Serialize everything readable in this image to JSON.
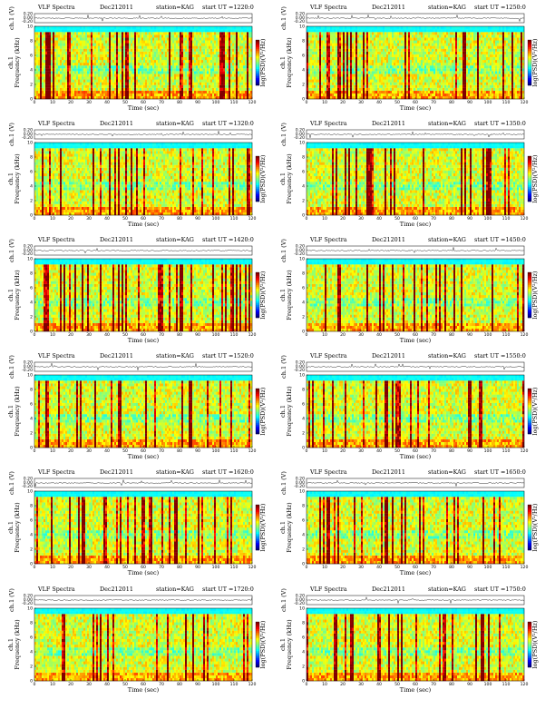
{
  "figure": {
    "header_left": "VLF Spectra",
    "date": "Dec212011",
    "station": "station=KAG",
    "start_prefix": "start UT =",
    "ch_label": "ch.1 (V)",
    "freq_label_left": "ch.1",
    "freq_label": "Frequency (kHz)",
    "time_label": "Time (sec)",
    "cbar_label": "log(PSD)(V²/Hz)"
  },
  "chart_data": [
    {
      "type": "heatmap",
      "title": "VLF Spectra Dec212011 station=KAG start UT =1220:0",
      "start_ut": "1220:0",
      "xlabel": "Time (sec)",
      "ylabel": "Frequency (kHz)",
      "xlim": [
        0,
        120
      ],
      "ylim": [
        0,
        10
      ],
      "x_ticks": [
        0,
        10,
        20,
        30,
        40,
        50,
        60,
        70,
        80,
        90,
        100,
        110,
        120
      ],
      "y_ticks": [
        0,
        2,
        4,
        6,
        8,
        10
      ],
      "waveform_ticks": [
        "0.20",
        "0.00",
        "-0.20"
      ],
      "colormap": "jet",
      "seed": 11
    },
    {
      "type": "heatmap",
      "title": "VLF Spectra Dec212011 station=KAG start UT =1250:0",
      "start_ut": "1250:0",
      "xlabel": "Time (sec)",
      "ylabel": "Frequency (kHz)",
      "xlim": [
        0,
        120
      ],
      "ylim": [
        0,
        10
      ],
      "x_ticks": [
        0,
        10,
        20,
        30,
        40,
        50,
        60,
        70,
        80,
        90,
        100,
        110,
        120
      ],
      "y_ticks": [
        0,
        2,
        4,
        6,
        8,
        10
      ],
      "waveform_ticks": [
        "0.20",
        "0.00",
        "-0.20"
      ],
      "colormap": "jet",
      "seed": 23
    },
    {
      "type": "heatmap",
      "title": "VLF Spectra Dec212011 station=KAG start UT =1320:0",
      "start_ut": "1320:0",
      "xlabel": "Time (sec)",
      "ylabel": "Frequency (kHz)",
      "xlim": [
        0,
        120
      ],
      "ylim": [
        0,
        10
      ],
      "x_ticks": [
        0,
        10,
        20,
        30,
        40,
        50,
        60,
        70,
        80,
        90,
        100,
        110,
        120
      ],
      "y_ticks": [
        0,
        2,
        4,
        6,
        8,
        10
      ],
      "waveform_ticks": [
        "0.20",
        "0.00",
        "-0.20"
      ],
      "colormap": "jet",
      "seed": 37
    },
    {
      "type": "heatmap",
      "title": "VLF Spectra Dec212011 station=KAG start UT =1350:0",
      "start_ut": "1350:0",
      "xlabel": "Time (sec)",
      "ylabel": "Frequency (kHz)",
      "xlim": [
        0,
        120
      ],
      "ylim": [
        0,
        10
      ],
      "x_ticks": [
        0,
        10,
        20,
        30,
        40,
        50,
        60,
        70,
        80,
        90,
        100,
        110,
        120
      ],
      "y_ticks": [
        0,
        2,
        4,
        6,
        8,
        10
      ],
      "waveform_ticks": [
        "0.20",
        "0.00",
        "-0.20"
      ],
      "colormap": "jet",
      "seed": 41
    },
    {
      "type": "heatmap",
      "title": "VLF Spectra Dec212011 station=KAG start UT =1420:0",
      "start_ut": "1420:0",
      "xlabel": "Time (sec)",
      "ylabel": "Frequency (kHz)",
      "xlim": [
        0,
        120
      ],
      "ylim": [
        0,
        10
      ],
      "x_ticks": [
        0,
        10,
        20,
        30,
        40,
        50,
        60,
        70,
        80,
        90,
        100,
        110,
        120
      ],
      "y_ticks": [
        0,
        2,
        4,
        6,
        8,
        10
      ],
      "waveform_ticks": [
        "0.20",
        "0.00",
        "-0.20"
      ],
      "colormap": "jet",
      "seed": 53
    },
    {
      "type": "heatmap",
      "title": "VLF Spectra Dec212011 station=KAG start UT =1450:0",
      "start_ut": "1450:0",
      "xlabel": "Time (sec)",
      "ylabel": "Frequency (kHz)",
      "xlim": [
        0,
        120
      ],
      "ylim": [
        0,
        10
      ],
      "x_ticks": [
        0,
        10,
        20,
        30,
        40,
        50,
        60,
        70,
        80,
        90,
        100,
        110,
        120
      ],
      "y_ticks": [
        0,
        2,
        4,
        6,
        8,
        10
      ],
      "waveform_ticks": [
        "0.20",
        "0.00",
        "-0.20"
      ],
      "colormap": "jet",
      "seed": 67
    },
    {
      "type": "heatmap",
      "title": "VLF Spectra Dec212011 station=KAG start UT =1520:0",
      "start_ut": "1520:0",
      "xlabel": "Time (sec)",
      "ylabel": "Frequency (kHz)",
      "xlim": [
        0,
        120
      ],
      "ylim": [
        0,
        10
      ],
      "x_ticks": [
        0,
        10,
        20,
        30,
        40,
        50,
        60,
        70,
        80,
        90,
        100,
        110,
        120
      ],
      "y_ticks": [
        0,
        2,
        4,
        6,
        8,
        10
      ],
      "waveform_ticks": [
        "0.20",
        "0.00",
        "-0.20"
      ],
      "colormap": "jet",
      "seed": 71
    },
    {
      "type": "heatmap",
      "title": "VLF Spectra Dec212011 station=KAG start UT =1550:0",
      "start_ut": "1550:0",
      "xlabel": "Time (sec)",
      "ylabel": "Frequency (kHz)",
      "xlim": [
        0,
        120
      ],
      "ylim": [
        0,
        10
      ],
      "x_ticks": [
        0,
        10,
        20,
        30,
        40,
        50,
        60,
        70,
        80,
        90,
        100,
        110,
        120
      ],
      "y_ticks": [
        0,
        2,
        4,
        6,
        8,
        10
      ],
      "waveform_ticks": [
        "0.20",
        "0.00",
        "-0.20"
      ],
      "colormap": "jet",
      "seed": 83
    },
    {
      "type": "heatmap",
      "title": "VLF Spectra Dec212011 station=KAG start UT =1620:0",
      "start_ut": "1620:0",
      "xlabel": "Time (sec)",
      "ylabel": "Frequency (kHz)",
      "xlim": [
        0,
        120
      ],
      "ylim": [
        0,
        10
      ],
      "x_ticks": [
        0,
        10,
        20,
        30,
        40,
        50,
        60,
        70,
        80,
        90,
        100,
        110,
        120
      ],
      "y_ticks": [
        0,
        2,
        4,
        6,
        8,
        10
      ],
      "waveform_ticks": [
        "0.20",
        "0.00",
        "-0.20"
      ],
      "colormap": "jet",
      "seed": 97
    },
    {
      "type": "heatmap",
      "title": "VLF Spectra Dec212011 station=KAG start UT =1650:0",
      "start_ut": "1650:0",
      "xlabel": "Time (sec)",
      "ylabel": "Frequency (kHz)",
      "xlim": [
        0,
        120
      ],
      "ylim": [
        0,
        10
      ],
      "x_ticks": [
        0,
        10,
        20,
        30,
        40,
        50,
        60,
        70,
        80,
        90,
        100,
        110,
        120
      ],
      "y_ticks": [
        0,
        2,
        4,
        6,
        8,
        10
      ],
      "waveform_ticks": [
        "0.20",
        "0.00",
        "-0.20"
      ],
      "colormap": "jet",
      "seed": 101
    },
    {
      "type": "heatmap",
      "title": "VLF Spectra Dec212011 station=KAG start UT =1720:0",
      "start_ut": "1720:0",
      "xlabel": "Time (sec)",
      "ylabel": "Frequency (kHz)",
      "xlim": [
        0,
        120
      ],
      "ylim": [
        0,
        10
      ],
      "x_ticks": [
        0,
        10,
        20,
        30,
        40,
        50,
        60,
        70,
        80,
        90,
        100,
        110,
        120
      ],
      "y_ticks": [
        0,
        2,
        4,
        6,
        8,
        10
      ],
      "waveform_ticks": [
        "0.20",
        "0.00",
        "-0.20"
      ],
      "colormap": "jet",
      "seed": 113
    },
    {
      "type": "heatmap",
      "title": "VLF Spectra Dec212011 station=KAG start UT =1750:0",
      "start_ut": "1750:0",
      "xlabel": "Time (sec)",
      "ylabel": "Frequency (kHz)",
      "xlim": [
        0,
        120
      ],
      "ylim": [
        0,
        10
      ],
      "x_ticks": [
        0,
        10,
        20,
        30,
        40,
        50,
        60,
        70,
        80,
        90,
        100,
        110,
        120
      ],
      "y_ticks": [
        0,
        2,
        4,
        6,
        8,
        10
      ],
      "waveform_ticks": [
        "0.20",
        "0.00",
        "-0.20"
      ],
      "colormap": "jet",
      "seed": 127
    }
  ]
}
